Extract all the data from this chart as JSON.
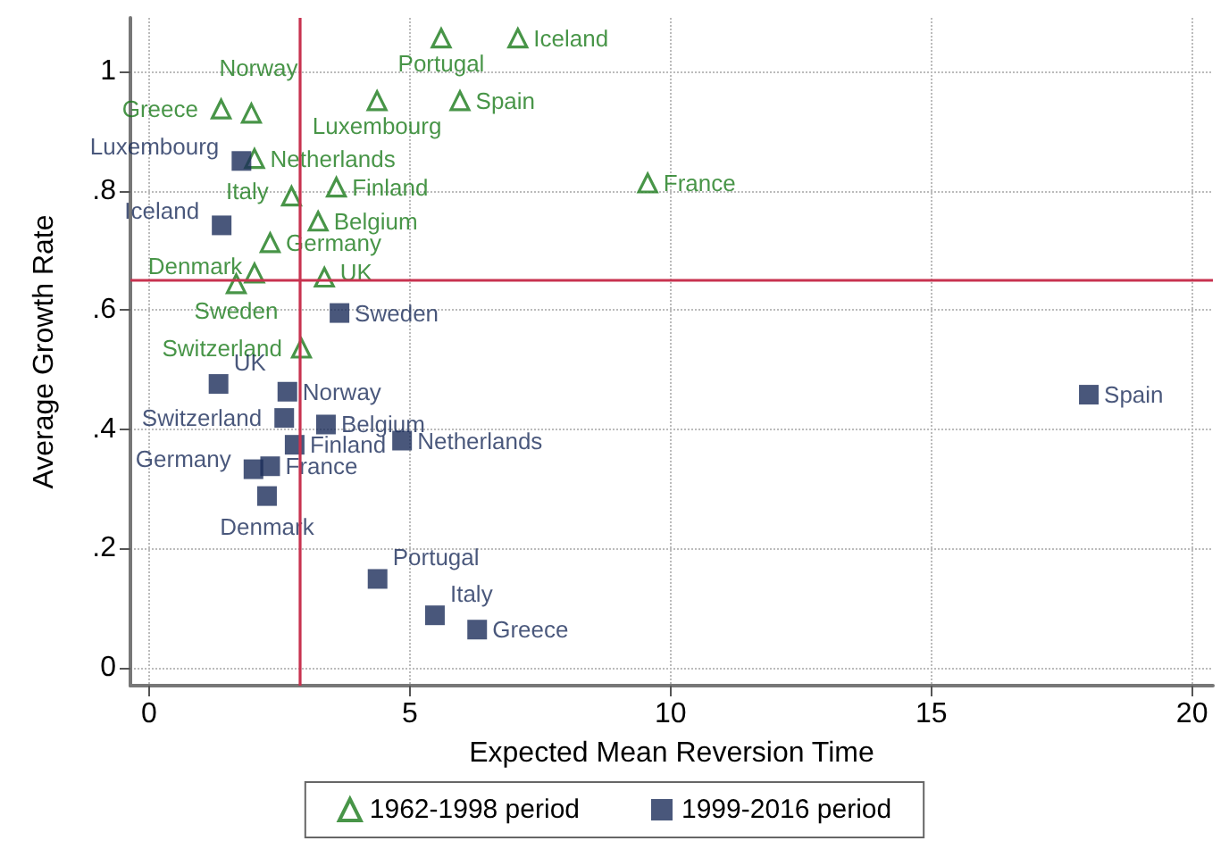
{
  "chart_data": {
    "type": "scatter",
    "xlabel": "Expected Mean Reversion Time",
    "ylabel": "Average Growth Rate",
    "xlim": [
      -0.36,
      20.4
    ],
    "ylim": [
      -0.03,
      1.09
    ],
    "xticks": [
      0,
      5,
      10,
      15,
      20
    ],
    "yticks": [
      0,
      {
        "value": 0.2,
        "label": ".2"
      },
      {
        "value": 0.4,
        "label": ".4"
      },
      {
        "value": 0.6,
        "label": ".6"
      },
      {
        "value": 0.8,
        "label": ".8"
      },
      1
    ],
    "grid": true,
    "legend": "bottom",
    "series": [
      {
        "name": "1962-1998 period",
        "color": "#1a7a1a",
        "marker": "triangle",
        "x": [
          1.38,
          1.96,
          4.37,
          5.6,
          7.07,
          5.96,
          2.02,
          2.73,
          3.59,
          3.24,
          2.32,
          2.02,
          1.67,
          3.36,
          2.92,
          9.56
        ],
        "values": [
          0.937,
          0.93,
          0.951,
          1.056,
          1.056,
          0.951,
          0.854,
          0.791,
          0.806,
          0.749,
          0.713,
          0.662,
          0.644,
          0.655,
          0.536,
          0.813
        ]
      },
      {
        "name": "1999-2016 period",
        "color": "#1c2d5a",
        "marker": "square",
        "x": [
          1.77,
          1.39,
          3.65,
          1.33,
          2.65,
          2.59,
          3.39,
          2.79,
          4.85,
          2.0,
          2.32,
          2.26,
          4.38,
          5.48,
          6.29,
          18.02
        ],
        "values": [
          0.85,
          0.742,
          0.595,
          0.476,
          0.463,
          0.419,
          0.408,
          0.374,
          0.381,
          0.333,
          0.338,
          0.288,
          0.149,
          0.088,
          0.064,
          0.458
        ]
      }
    ],
    "annotations": [
      {
        "text": "Greece",
        "x": 1.38,
        "y": 0.937
      },
      {
        "text": "Norway",
        "x": 1.96,
        "y": 0.93
      },
      {
        "text": "Luxembourg",
        "x": 4.37,
        "y": 0.951
      },
      {
        "text": "Portugal",
        "x": 5.6,
        "y": 1.056
      },
      {
        "text": "Iceland",
        "x": 7.07,
        "y": 1.056
      },
      {
        "text": "Spain",
        "x": 5.96,
        "y": 0.951
      },
      {
        "text": "Netherlands",
        "x": 2.02,
        "y": 0.854
      },
      {
        "text": "Italy",
        "x": 2.73,
        "y": 0.791
      },
      {
        "text": "Finland",
        "x": 3.59,
        "y": 0.806
      },
      {
        "text": "Belgium",
        "x": 3.24,
        "y": 0.749
      },
      {
        "text": "Germany",
        "x": 2.32,
        "y": 0.713
      },
      {
        "text": "Denmark",
        "x": 2.02,
        "y": 0.662
      },
      {
        "text": "Sweden",
        "x": 1.67,
        "y": 0.644
      },
      {
        "text": "UK",
        "x": 3.36,
        "y": 0.655
      },
      {
        "text": "Switzerland",
        "x": 2.92,
        "y": 0.536
      },
      {
        "text": "France",
        "x": 9.56,
        "y": 0.813
      },
      {
        "text": "Luxembourg",
        "x": 1.77,
        "y": 0.85
      },
      {
        "text": "Iceland",
        "x": 1.39,
        "y": 0.742
      },
      {
        "text": "Sweden",
        "x": 3.65,
        "y": 0.595
      },
      {
        "text": "UK",
        "x": 1.33,
        "y": 0.476
      },
      {
        "text": "Norway",
        "x": 2.65,
        "y": 0.463
      },
      {
        "text": "Switzerland",
        "x": 2.59,
        "y": 0.419
      },
      {
        "text": "Belgium",
        "x": 3.39,
        "y": 0.408
      },
      {
        "text": "Finland",
        "x": 2.79,
        "y": 0.374
      },
      {
        "text": "Netherlands",
        "x": 4.85,
        "y": 0.381
      },
      {
        "text": "Germany",
        "x": 2.0,
        "y": 0.333
      },
      {
        "text": "France",
        "x": 2.32,
        "y": 0.338
      },
      {
        "text": "Denmark",
        "x": 2.26,
        "y": 0.288
      },
      {
        "text": "Portugal",
        "x": 4.38,
        "y": 0.149
      },
      {
        "text": "Italy",
        "x": 5.48,
        "y": 0.088
      },
      {
        "text": "Greece",
        "x": 6.29,
        "y": 0.064
      },
      {
        "text": "Spain",
        "x": 18.02,
        "y": 0.458
      }
    ],
    "ref_lines": [
      {
        "axis": "x",
        "value": 2.87,
        "color": "#c8324f"
      },
      {
        "axis": "y",
        "value": 0.647,
        "color": "#c8324f"
      }
    ]
  }
}
